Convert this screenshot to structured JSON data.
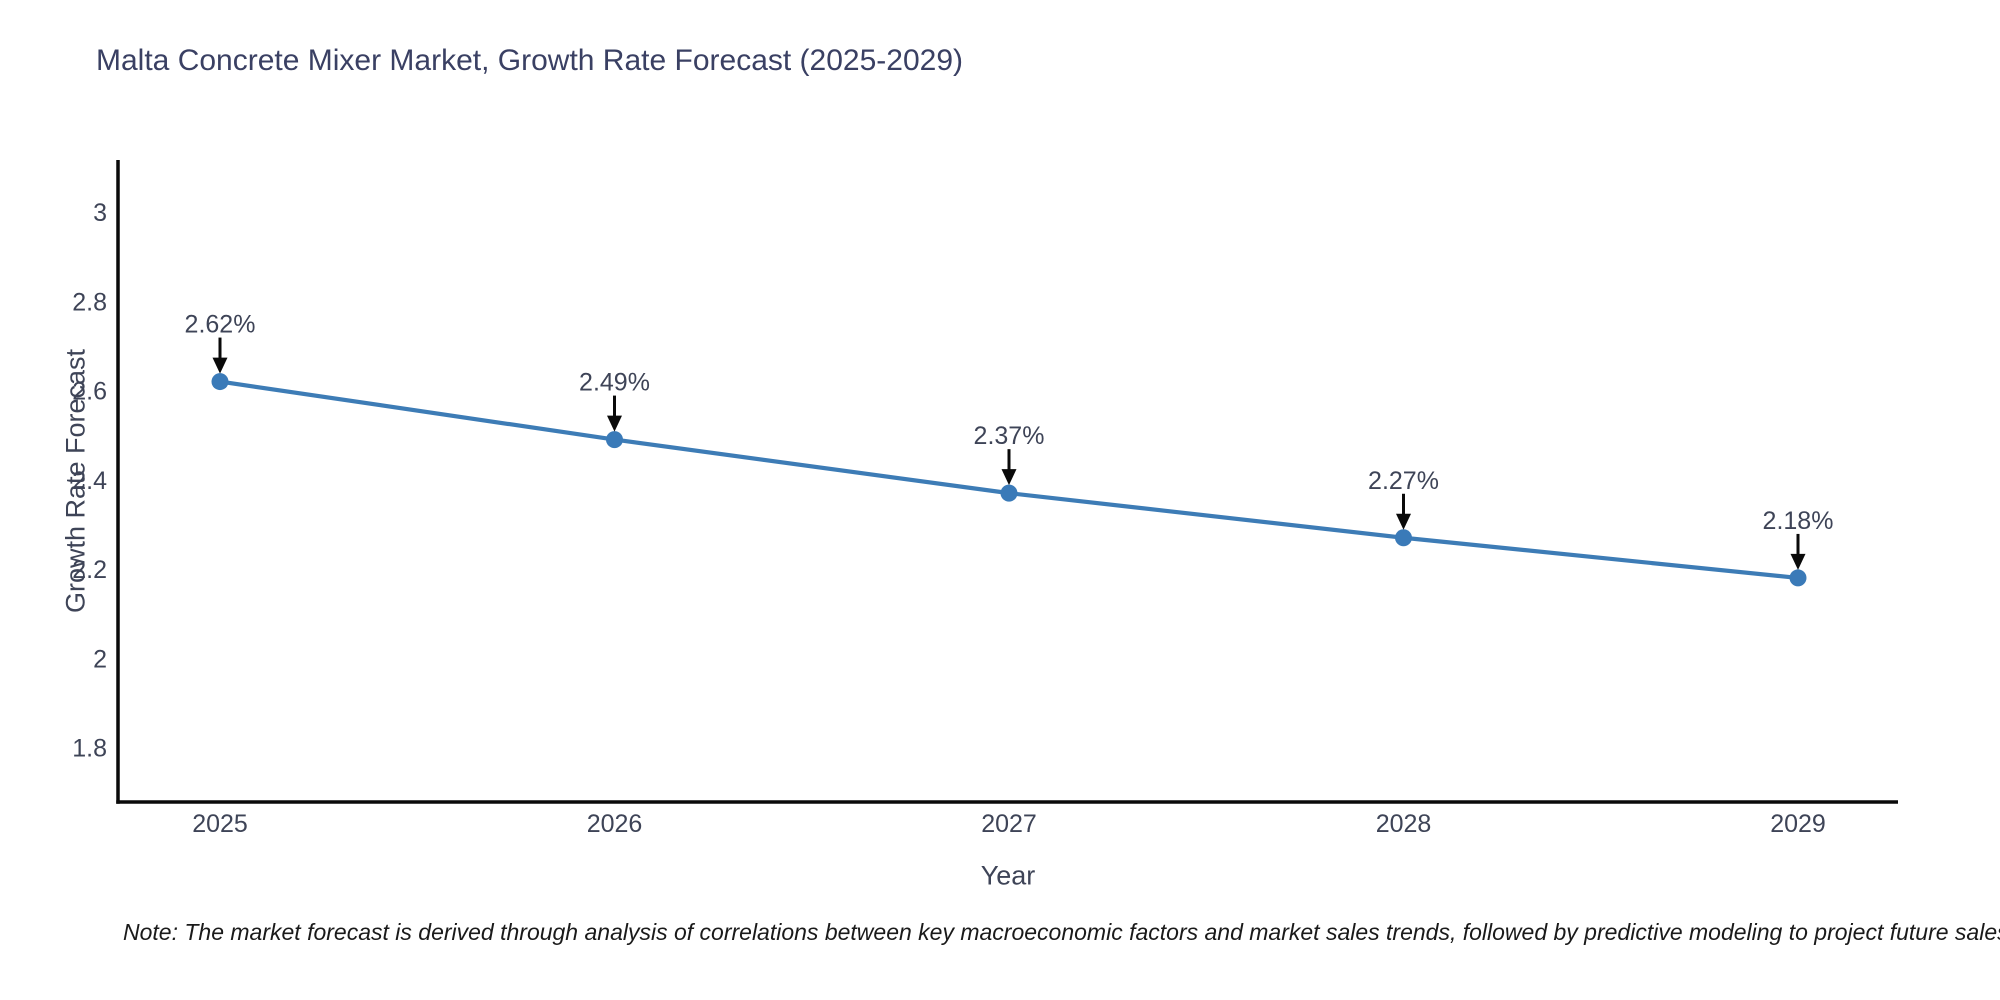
{
  "title": "Malta Concrete Mixer Market, Growth Rate Forecast (2025-2029)",
  "note": "Note: The market forecast is derived through analysis of correlations between key macroeconomic factors and market sales trends, followed by predictive modeling to project future sales",
  "chart_data": {
    "type": "line",
    "x": [
      2025,
      2026,
      2027,
      2028,
      2029
    ],
    "x_tick_labels": [
      "2025",
      "2026",
      "2027",
      "2028",
      "2029"
    ],
    "values": [
      2.62,
      2.49,
      2.37,
      2.27,
      2.18
    ],
    "point_labels": [
      "2.62%",
      "2.49%",
      "2.37%",
      "2.27%",
      "2.18%"
    ],
    "xlabel": "Year",
    "ylabel": "Growth Rate Forecast",
    "y_ticks": [
      3,
      2.8,
      2.6,
      2.4,
      2.2,
      2,
      1.8
    ],
    "y_tick_labels": [
      "3",
      "2.8",
      "2.6",
      "2.4",
      "2.2",
      "2",
      "1.8"
    ],
    "ylim": [
      1.68,
      3.11
    ],
    "grid": false,
    "legend": null,
    "annotation_style": "black-arrow-down-to-point",
    "colors": {
      "line": "#3d7cb6",
      "marker": "#3a7ab8",
      "axis": "#0a0a0a",
      "tick_text": "#3e4457",
      "title_text": "#3a4063",
      "note_text": "#1a1a1a"
    }
  }
}
